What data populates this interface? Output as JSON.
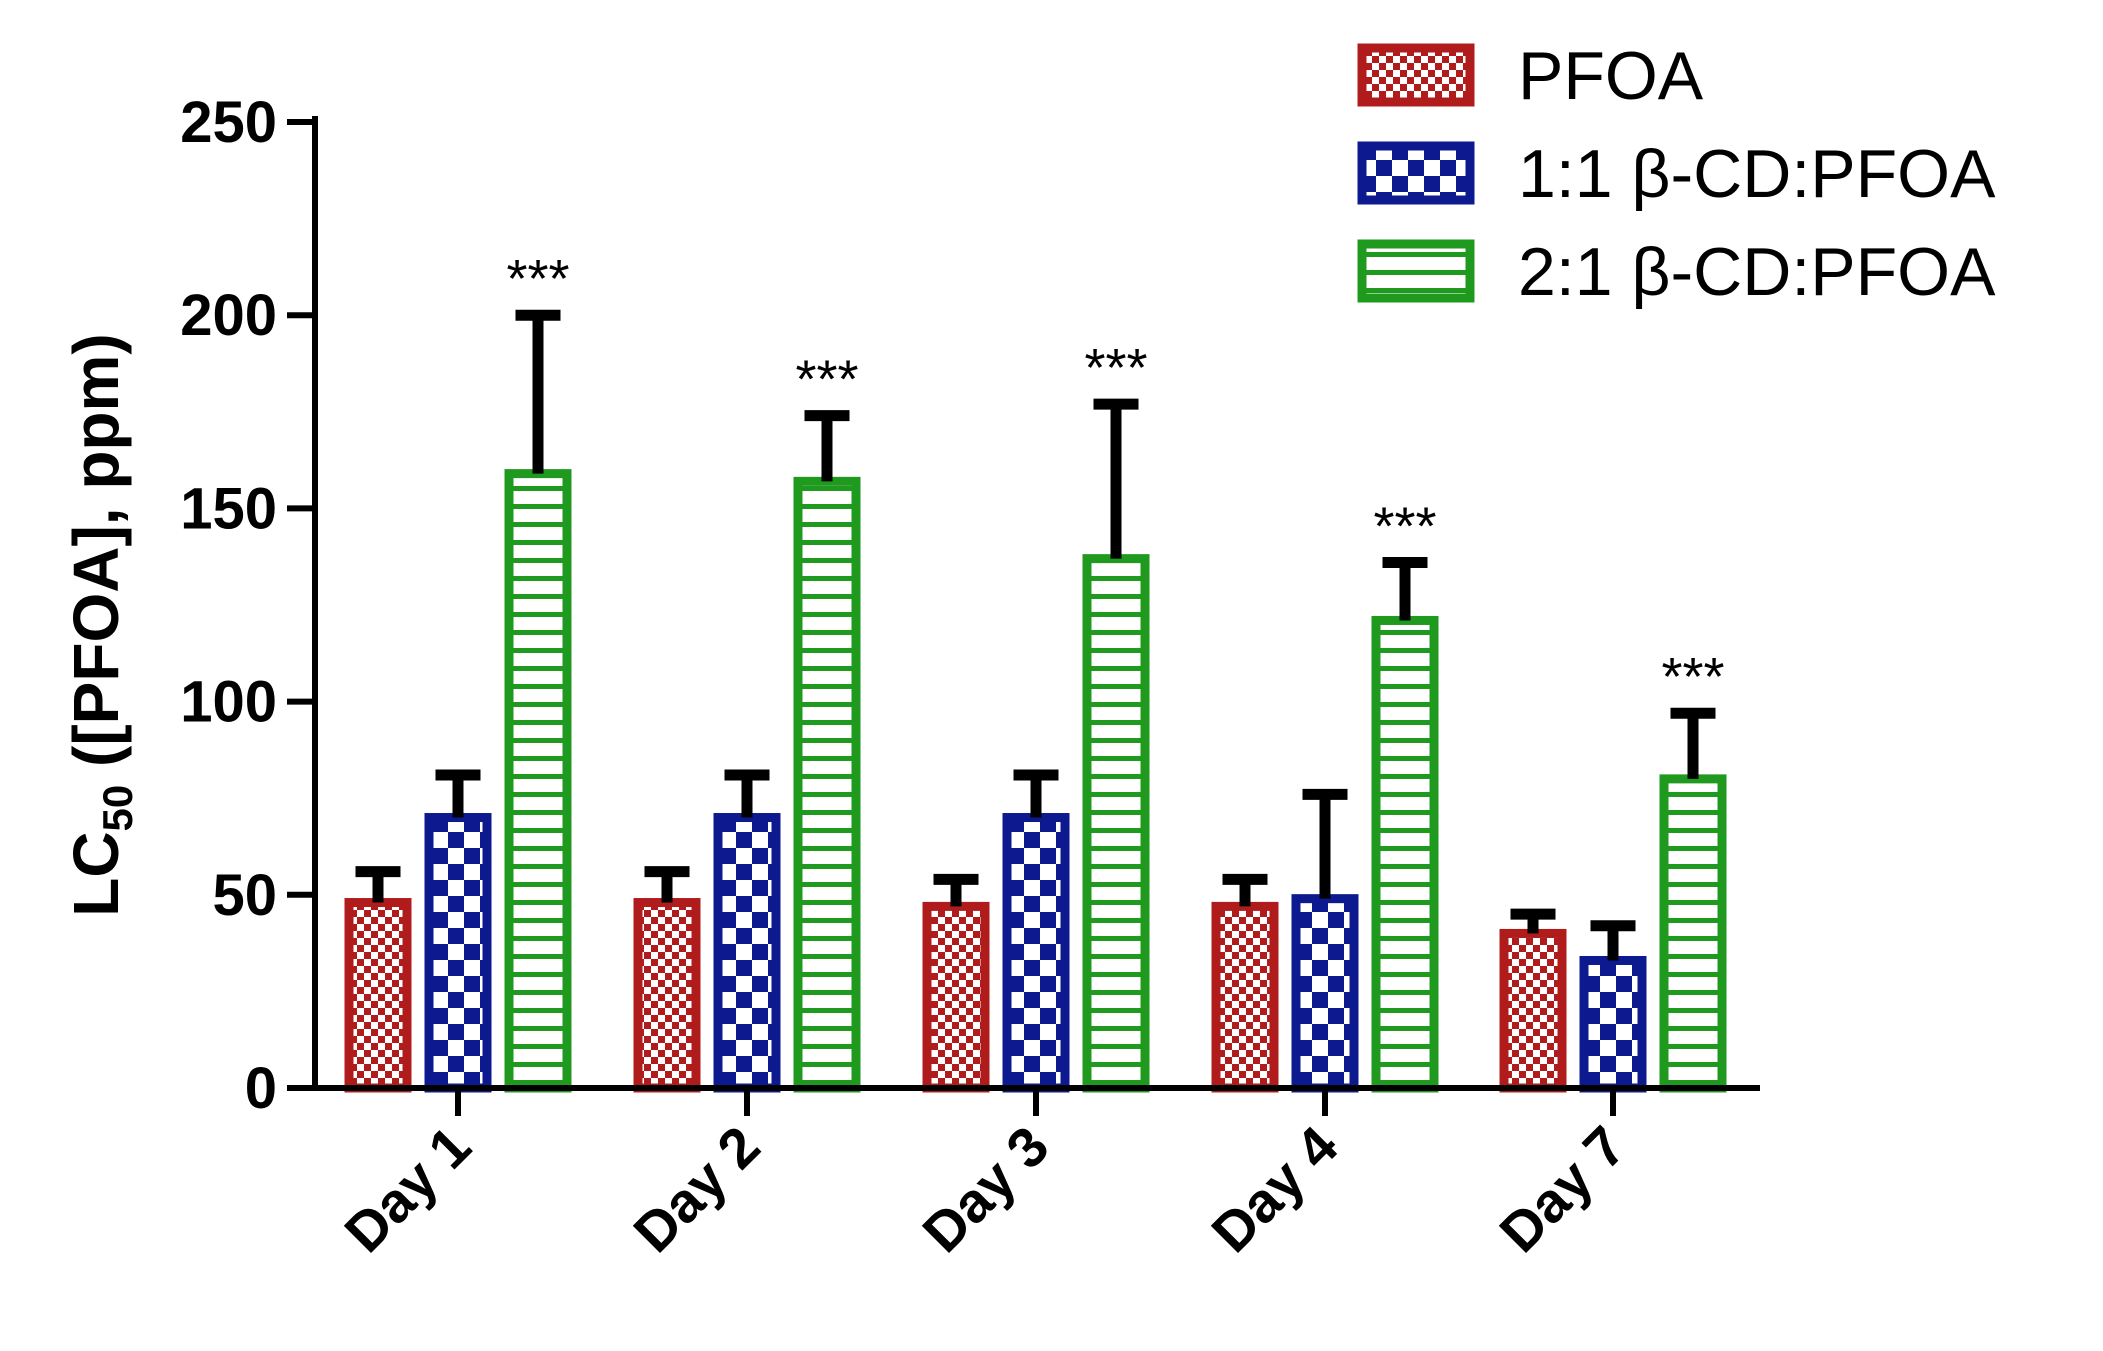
{
  "chart_data": {
    "type": "bar",
    "title": "",
    "xlabel": "",
    "ylabel_main": "LC",
    "ylabel_sub": "50",
    "ylabel_rest": " ([PFOA], ppm)",
    "ylim": [
      0,
      250
    ],
    "yticks": [
      0,
      50,
      100,
      150,
      200,
      250
    ],
    "categories": [
      "Day 1",
      "Day 2",
      "Day 3",
      "Day 4",
      "Day 7"
    ],
    "series": [
      {
        "name": "PFOA",
        "color": "#b01c1c",
        "pattern": "checker-fine",
        "values": [
          48,
          48,
          47,
          47,
          40
        ],
        "errors": [
          8,
          8,
          7,
          7,
          5
        ]
      },
      {
        "name": "1:1 β-CD:PFOA",
        "color": "#0d1a8f",
        "pattern": "checker-coarse",
        "values": [
          70,
          70,
          70,
          49,
          33
        ],
        "errors": [
          11,
          11,
          11,
          27,
          9
        ]
      },
      {
        "name": "2:1 β-CD:PFOA",
        "color": "#1f9a1f",
        "pattern": "horizontal-lines",
        "values": [
          159,
          157,
          137,
          121,
          80
        ],
        "errors": [
          41,
          17,
          40,
          15,
          17
        ]
      }
    ],
    "annotations": [
      "***",
      "***",
      "***",
      "***",
      "***"
    ],
    "legend_position": "top-right"
  }
}
